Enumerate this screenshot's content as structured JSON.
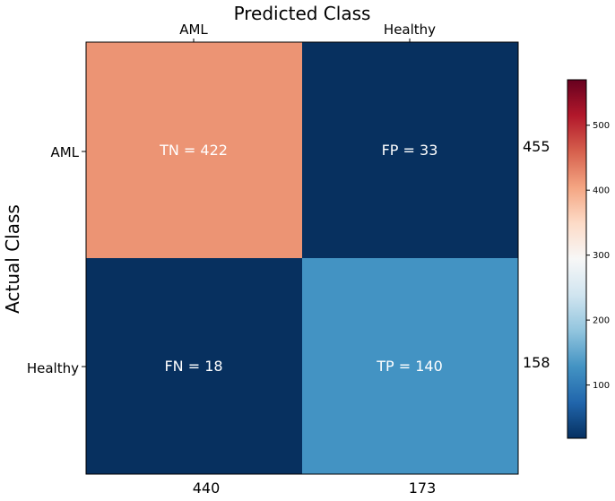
{
  "chart_data": {
    "type": "heatmap",
    "title": "Predicted Class",
    "ylabel": "Actual Class",
    "x_categories": [
      "AML",
      "Healthy"
    ],
    "y_categories": [
      "AML",
      "Healthy"
    ],
    "cells": [
      [
        {
          "label": "TN = 422",
          "value": 422
        },
        {
          "label": "FP = 33",
          "value": 33
        }
      ],
      [
        {
          "label": "FN = 18",
          "value": 18
        },
        {
          "label": "TP = 140",
          "value": 140
        }
      ]
    ],
    "row_totals": [
      "455",
      "158"
    ],
    "col_totals": [
      "440",
      "173"
    ],
    "colorbar": {
      "colormap": "RdBu_r",
      "range": [
        18,
        570
      ],
      "ticks": [
        "100",
        "200",
        "300",
        "400",
        "500"
      ],
      "tick_values": [
        100,
        200,
        300,
        400,
        500
      ]
    },
    "colors": {
      "TN": "#ec9474",
      "FP": "#07305f",
      "FN": "#07305f",
      "TP": "#4393c3"
    }
  }
}
